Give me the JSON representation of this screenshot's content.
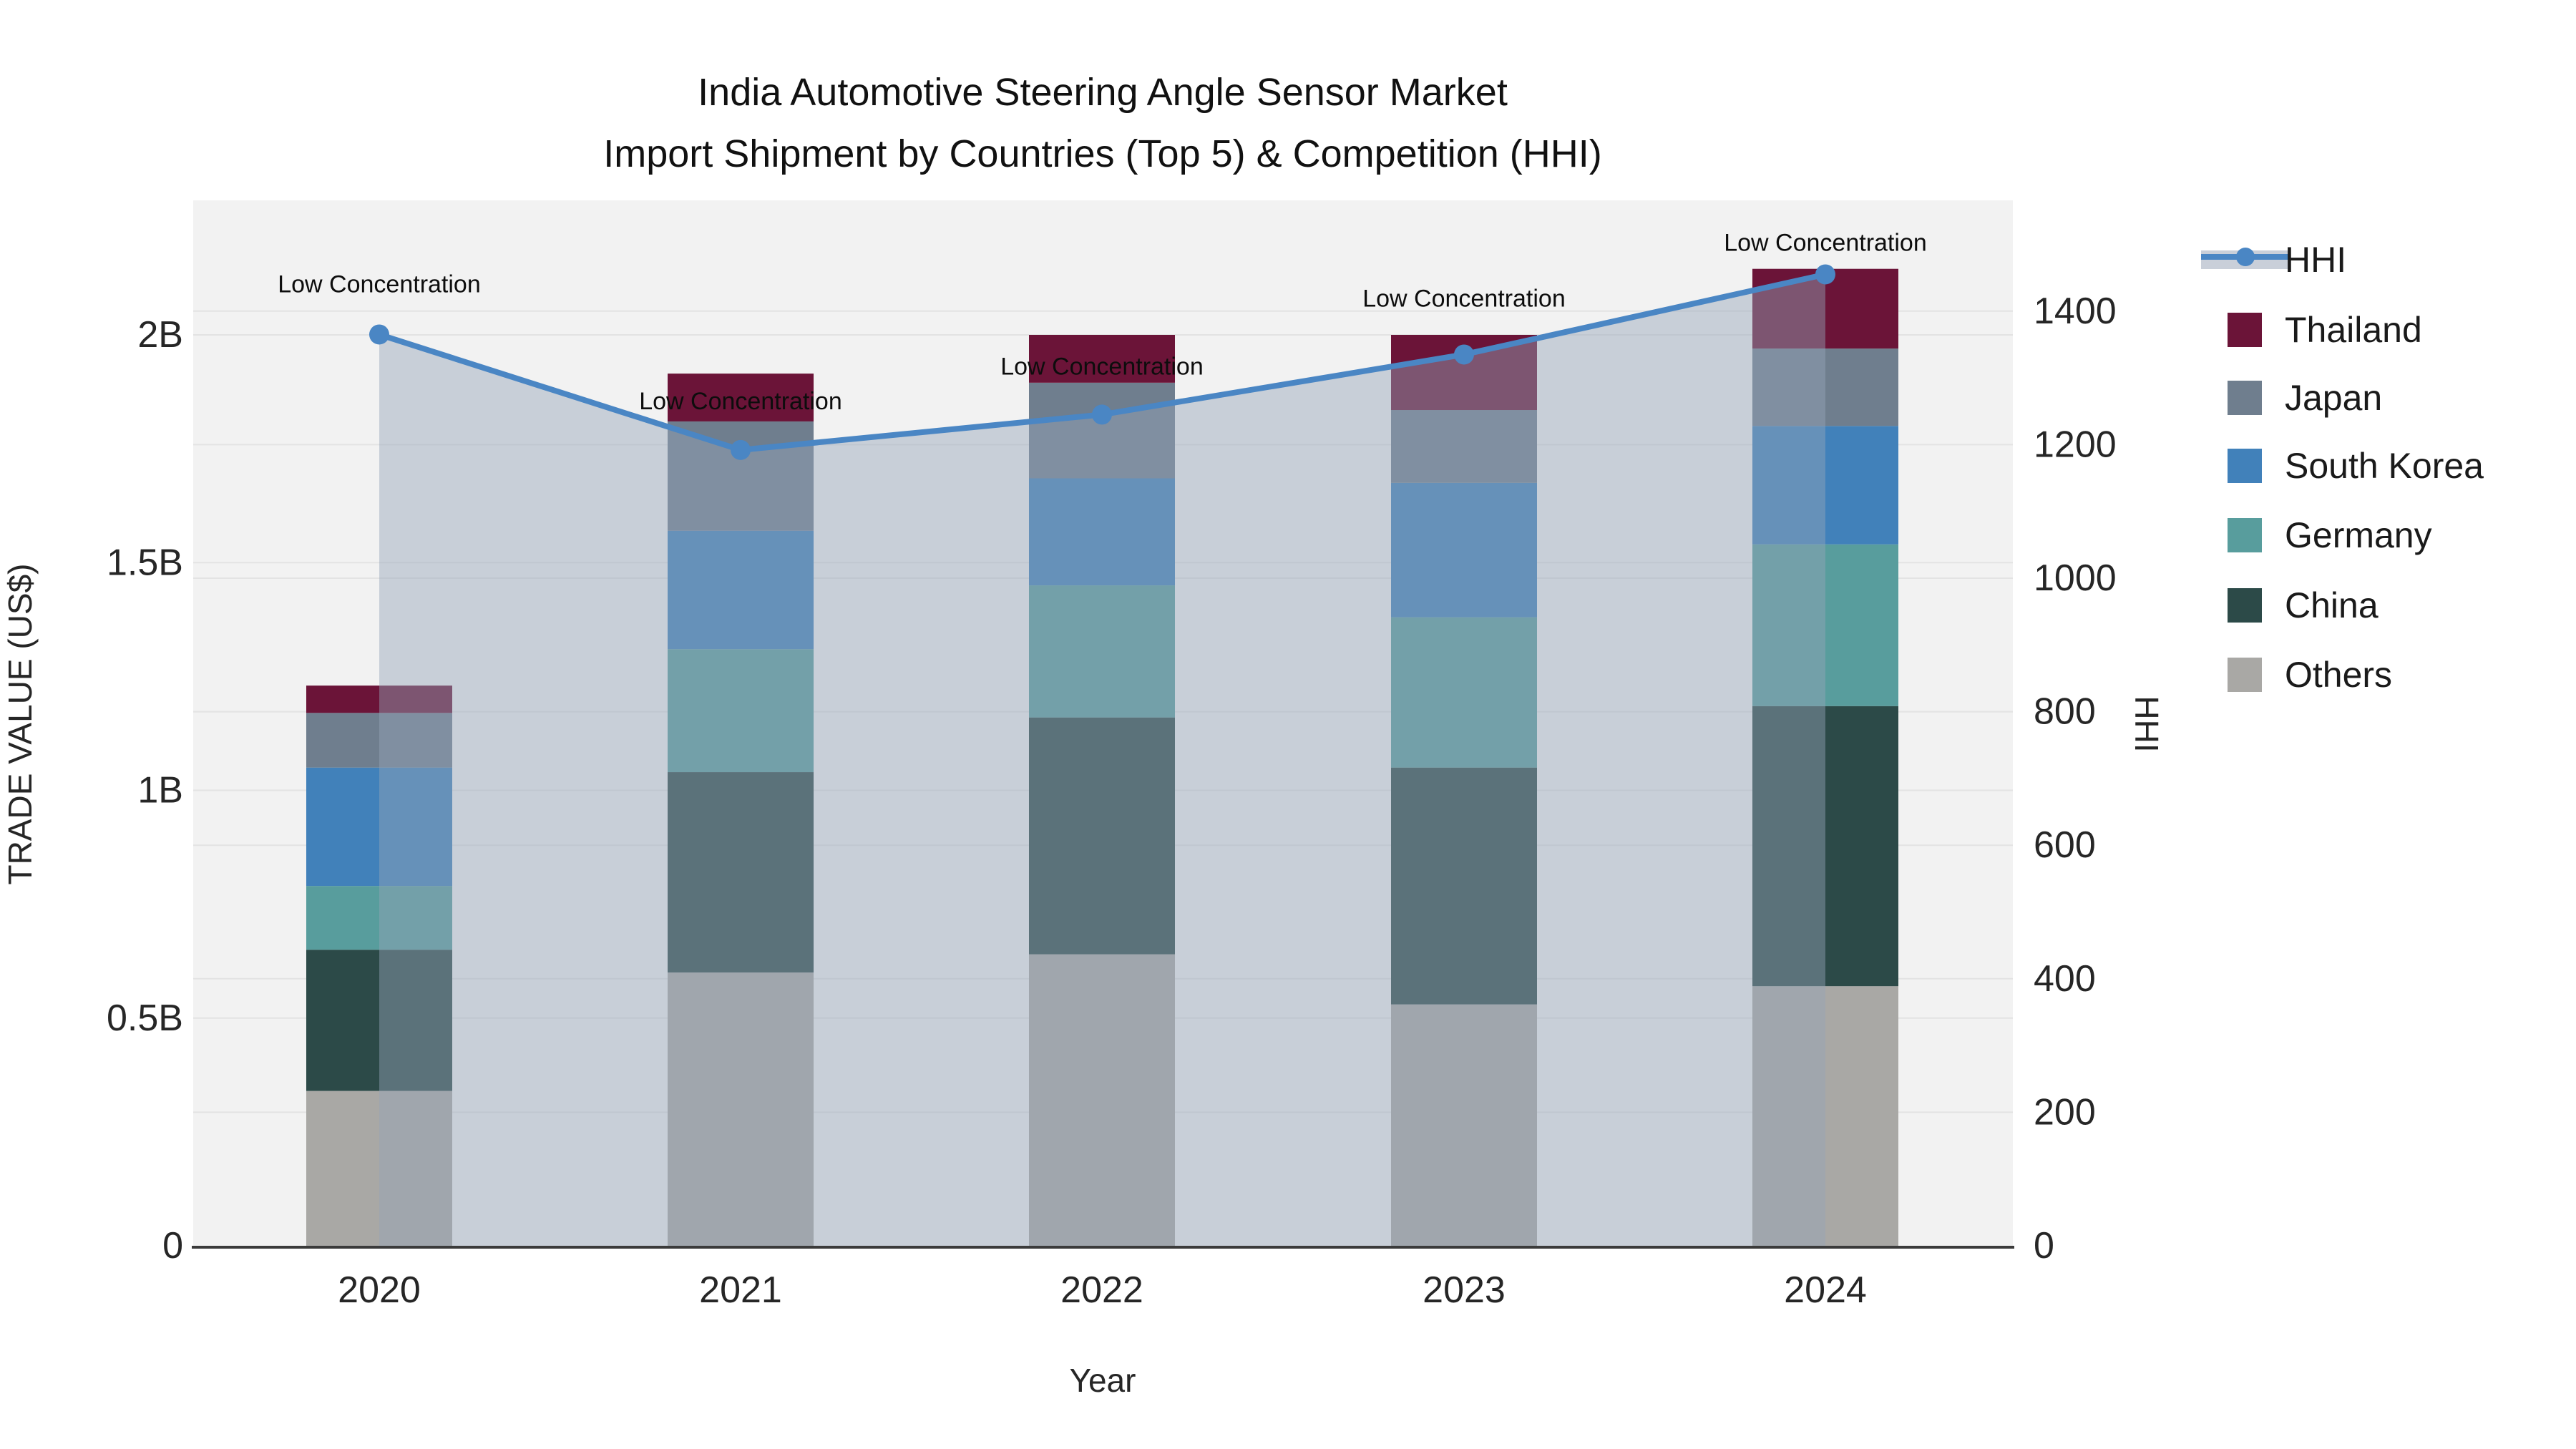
{
  "title": {
    "line1": "India Automotive Steering Angle Sensor Market",
    "line2": "Import Shipment by Countries (Top 5) & Competition (HHI)"
  },
  "axes": {
    "x": {
      "title": "Year",
      "ticks": [
        "2020",
        "2021",
        "2022",
        "2023",
        "2024"
      ]
    },
    "y_left": {
      "title": "TRADE VALUE (US$)",
      "ticks": [
        {
          "label": "0",
          "value": 0
        },
        {
          "label": "0.5B",
          "value": 0.5
        },
        {
          "label": "1B",
          "value": 1
        },
        {
          "label": "1.5B",
          "value": 1.5
        },
        {
          "label": "2B",
          "value": 2
        }
      ]
    },
    "y_right": {
      "title": "HHI",
      "ticks": [
        {
          "label": "0",
          "value": 0
        },
        {
          "label": "200",
          "value": 200
        },
        {
          "label": "400",
          "value": 400
        },
        {
          "label": "600",
          "value": 600
        },
        {
          "label": "800",
          "value": 800
        },
        {
          "label": "1000",
          "value": 1000
        },
        {
          "label": "1200",
          "value": 1200
        },
        {
          "label": "1400",
          "value": 1400
        }
      ]
    }
  },
  "legend": {
    "items": [
      {
        "label": "HHI",
        "type": "line",
        "color": "#4a86c4",
        "swatch_fill": "#c9cfd9"
      },
      {
        "label": "Thailand",
        "type": "square",
        "color": "#6b1438"
      },
      {
        "label": "Japan",
        "type": "square",
        "color": "#6f7e8e"
      },
      {
        "label": "South Korea",
        "type": "square",
        "color": "#4181ba"
      },
      {
        "label": "Germany",
        "type": "square",
        "color": "#589d9d"
      },
      {
        "label": "China",
        "type": "square",
        "color": "#2c4a48"
      },
      {
        "label": "Others",
        "type": "square",
        "color": "#a9a8a5"
      }
    ]
  },
  "chart_data": {
    "type": "bar+line",
    "title": "India Automotive Steering Angle Sensor Market Import Shipment by Countries (Top 5) & Competition (HHI)",
    "xlabel": "Year",
    "ylabel_left": "TRADE VALUE (US$)",
    "ylabel_right": "HHI",
    "categories": [
      "2020",
      "2021",
      "2022",
      "2023",
      "2024"
    ],
    "stack_unit": "billion US$",
    "series": [
      {
        "name": "Others",
        "color": "#a9a8a5",
        "values": [
          0.34,
          0.6,
          0.64,
          0.53,
          0.57
        ]
      },
      {
        "name": "China",
        "color": "#2c4a48",
        "values": [
          0.31,
          0.44,
          0.52,
          0.52,
          0.615
        ]
      },
      {
        "name": "Germany",
        "color": "#589d9d",
        "values": [
          0.14,
          0.27,
          0.29,
          0.33,
          0.355
        ]
      },
      {
        "name": "South Korea",
        "color": "#4181ba",
        "values": [
          0.26,
          0.26,
          0.235,
          0.295,
          0.26
        ]
      },
      {
        "name": "Japan",
        "color": "#6f7e8e",
        "values": [
          0.12,
          0.24,
          0.21,
          0.16,
          0.17
        ]
      },
      {
        "name": "Thailand",
        "color": "#6b1438",
        "values": [
          0.06,
          0.105,
          0.105,
          0.165,
          0.175
        ]
      }
    ],
    "bar_totals": [
      1.23,
      1.915,
      2.0,
      2.0,
      2.145
    ],
    "line_series": {
      "name": "HHI",
      "color": "#4a86c4",
      "fill_color": "rgba(148,163,184,0.45)",
      "values": [
        1365,
        1192,
        1245,
        1335,
        1455
      ]
    },
    "annotations": [
      "Low Concentration",
      "Low Concentration",
      "Low Concentration",
      "Low Concentration",
      "Low Concentration"
    ],
    "ylim_left": [
      0,
      2.29
    ],
    "ylim_right": [
      0,
      1565
    ],
    "grid": true,
    "legend_position": "right",
    "plot_bg": "#f2f2f2",
    "grid_color": "#e3e3e3",
    "baseline_color": "#3b3b3b"
  }
}
